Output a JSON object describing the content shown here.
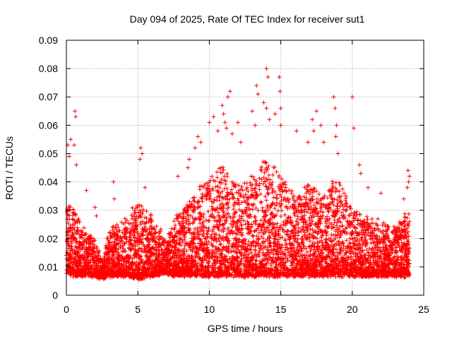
{
  "chart_data": {
    "type": "scatter",
    "title": "Day 094 of 2025, Rate Of TEC Index for receiver sut1",
    "xlabel": "GPS time / hours",
    "ylabel": "ROTI / TECUs",
    "xlim": [
      0,
      25
    ],
    "ylim": [
      0,
      0.09
    ],
    "x_ticks": [
      "0",
      "5",
      "10",
      "15",
      "20",
      "25"
    ],
    "y_ticks": [
      "0",
      "0.01",
      "0.02",
      "0.03",
      "0.04",
      "0.05",
      "0.06",
      "0.07",
      "0.08",
      "0.09"
    ],
    "x_tick_values": [
      0,
      5,
      10,
      15,
      20,
      25
    ],
    "y_tick_values": [
      0,
      0.01,
      0.02,
      0.03,
      0.04,
      0.05,
      0.06,
      0.07,
      0.08,
      0.09
    ],
    "grid": true,
    "marker": "plus",
    "color": "#ff0000",
    "envelope": {
      "x": [
        0,
        0.5,
        1,
        1.5,
        2,
        2.6,
        2.8,
        3,
        4,
        5,
        6,
        7,
        7.5,
        8,
        9,
        10,
        11,
        12,
        13,
        14,
        15,
        16,
        17,
        18,
        19,
        20,
        21,
        22,
        23,
        24
      ],
      "low": [
        0.008,
        0.007,
        0.007,
        0.007,
        0.007,
        0.006,
        0.007,
        0.007,
        0.007,
        0.006,
        0.007,
        0.008,
        0.007,
        0.007,
        0.007,
        0.007,
        0.007,
        0.007,
        0.007,
        0.007,
        0.007,
        0.007,
        0.007,
        0.007,
        0.007,
        0.007,
        0.007,
        0.007,
        0.007,
        0.007
      ],
      "high": [
        0.033,
        0.03,
        0.025,
        0.022,
        0.02,
        0.012,
        0.02,
        0.024,
        0.026,
        0.034,
        0.028,
        0.02,
        0.026,
        0.03,
        0.036,
        0.042,
        0.046,
        0.038,
        0.042,
        0.048,
        0.044,
        0.034,
        0.04,
        0.036,
        0.042,
        0.03,
        0.028,
        0.026,
        0.024,
        0.03
      ]
    },
    "density_per_hour": 260,
    "seed": 94,
    "outliers": [
      {
        "x": 0.1,
        "y": 0.053
      },
      {
        "x": 0.2,
        "y": 0.049
      },
      {
        "x": 0.3,
        "y": 0.055
      },
      {
        "x": 0.6,
        "y": 0.065
      },
      {
        "x": 0.65,
        "y": 0.063
      },
      {
        "x": 0.55,
        "y": 0.053
      },
      {
        "x": 0.7,
        "y": 0.046
      },
      {
        "x": 1.4,
        "y": 0.037
      },
      {
        "x": 2.0,
        "y": 0.031
      },
      {
        "x": 2.1,
        "y": 0.028
      },
      {
        "x": 3.3,
        "y": 0.04
      },
      {
        "x": 3.35,
        "y": 0.034
      },
      {
        "x": 5.2,
        "y": 0.052
      },
      {
        "x": 5.3,
        "y": 0.05
      },
      {
        "x": 5.15,
        "y": 0.048
      },
      {
        "x": 5.5,
        "y": 0.038
      },
      {
        "x": 7.8,
        "y": 0.042
      },
      {
        "x": 8.5,
        "y": 0.045
      },
      {
        "x": 8.6,
        "y": 0.048
      },
      {
        "x": 9.0,
        "y": 0.052
      },
      {
        "x": 9.2,
        "y": 0.056
      },
      {
        "x": 9.4,
        "y": 0.054
      },
      {
        "x": 10.0,
        "y": 0.061
      },
      {
        "x": 10.3,
        "y": 0.063
      },
      {
        "x": 10.6,
        "y": 0.058
      },
      {
        "x": 10.9,
        "y": 0.067
      },
      {
        "x": 11.0,
        "y": 0.064
      },
      {
        "x": 11.1,
        "y": 0.061
      },
      {
        "x": 11.3,
        "y": 0.07
      },
      {
        "x": 11.45,
        "y": 0.072
      },
      {
        "x": 11.2,
        "y": 0.059
      },
      {
        "x": 11.6,
        "y": 0.057
      },
      {
        "x": 12.0,
        "y": 0.061
      },
      {
        "x": 12.2,
        "y": 0.054
      },
      {
        "x": 13.0,
        "y": 0.065
      },
      {
        "x": 13.2,
        "y": 0.06
      },
      {
        "x": 13.3,
        "y": 0.074
      },
      {
        "x": 13.4,
        "y": 0.071
      },
      {
        "x": 13.8,
        "y": 0.068
      },
      {
        "x": 14.0,
        "y": 0.08
      },
      {
        "x": 14.1,
        "y": 0.077
      },
      {
        "x": 14.0,
        "y": 0.066
      },
      {
        "x": 14.2,
        "y": 0.062
      },
      {
        "x": 14.6,
        "y": 0.064
      },
      {
        "x": 14.9,
        "y": 0.077
      },
      {
        "x": 14.95,
        "y": 0.072
      },
      {
        "x": 15.0,
        "y": 0.066
      },
      {
        "x": 15.0,
        "y": 0.06
      },
      {
        "x": 16.1,
        "y": 0.058
      },
      {
        "x": 16.9,
        "y": 0.054
      },
      {
        "x": 17.2,
        "y": 0.062
      },
      {
        "x": 17.3,
        "y": 0.058
      },
      {
        "x": 17.5,
        "y": 0.065
      },
      {
        "x": 17.8,
        "y": 0.06
      },
      {
        "x": 18.0,
        "y": 0.054
      },
      {
        "x": 18.7,
        "y": 0.07
      },
      {
        "x": 18.8,
        "y": 0.066
      },
      {
        "x": 18.9,
        "y": 0.06
      },
      {
        "x": 18.85,
        "y": 0.056
      },
      {
        "x": 19.0,
        "y": 0.05
      },
      {
        "x": 20.0,
        "y": 0.07
      },
      {
        "x": 20.1,
        "y": 0.059
      },
      {
        "x": 20.5,
        "y": 0.046
      },
      {
        "x": 20.6,
        "y": 0.043
      },
      {
        "x": 21.1,
        "y": 0.038
      },
      {
        "x": 22.0,
        "y": 0.036
      },
      {
        "x": 23.6,
        "y": 0.034
      },
      {
        "x": 23.9,
        "y": 0.044
      },
      {
        "x": 23.95,
        "y": 0.04
      },
      {
        "x": 23.85,
        "y": 0.038
      },
      {
        "x": 24.0,
        "y": 0.042
      }
    ]
  }
}
